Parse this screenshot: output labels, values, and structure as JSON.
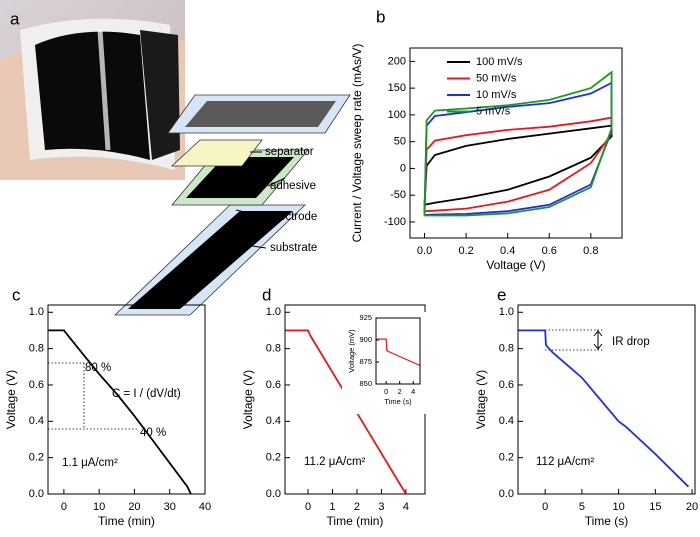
{
  "figure_a": {
    "panel": "a",
    "layers": [
      "separator",
      "adhesive",
      "electrode",
      "substrate"
    ]
  },
  "chart_data": [
    {
      "type": "line",
      "panel": "b",
      "xlabel": "Voltage (V)",
      "ylabel": "Current / Voltage sweep rate (mAs/V)",
      "xlim": [
        -0.07,
        0.95
      ],
      "ylim": [
        -130,
        225
      ],
      "xticks": [
        {
          "value": 0,
          "label": "0.0"
        },
        0.2,
        0.4,
        0.6,
        0.8
      ],
      "yticks": [
        -100,
        -50,
        0,
        50,
        100,
        150,
        200
      ],
      "legend": "top-left",
      "series": [
        {
          "name": "100 mV/s",
          "color": "#000000",
          "x": [
            0,
            0.01,
            0.05,
            0.2,
            0.4,
            0.6,
            0.8,
            0.9,
            0.9,
            0.8,
            0.6,
            0.4,
            0.2,
            0.05,
            0
          ],
          "values": [
            -68,
            5,
            25,
            42,
            55,
            65,
            75,
            80,
            60,
            20,
            -15,
            -40,
            -55,
            -64,
            -68
          ]
        },
        {
          "name": "50 mV/s",
          "color": "#e8191c",
          "x": [
            0,
            0.01,
            0.05,
            0.2,
            0.4,
            0.6,
            0.8,
            0.9,
            0.9,
            0.8,
            0.6,
            0.4,
            0.2,
            0.05,
            0
          ],
          "values": [
            -80,
            35,
            52,
            62,
            72,
            78,
            88,
            95,
            65,
            10,
            -40,
            -62,
            -75,
            -79,
            -80
          ]
        },
        {
          "name": "10 mV/s",
          "color": "#1f2fe0",
          "x": [
            0,
            0.01,
            0.05,
            0.2,
            0.4,
            0.6,
            0.8,
            0.9,
            0.9,
            0.8,
            0.6,
            0.4,
            0.2,
            0.05,
            0
          ],
          "values": [
            -87,
            80,
            98,
            105,
            115,
            122,
            140,
            160,
            70,
            -30,
            -68,
            -80,
            -85,
            -86,
            -87
          ]
        },
        {
          "name": "5 mV/s",
          "color": "#1a9a1a",
          "x": [
            0,
            0.01,
            0.05,
            0.2,
            0.4,
            0.6,
            0.8,
            0.9,
            0.9,
            0.8,
            0.6,
            0.4,
            0.2,
            0.05,
            0
          ],
          "values": [
            -88,
            90,
            108,
            112,
            118,
            128,
            150,
            180,
            75,
            -35,
            -72,
            -84,
            -88,
            -88,
            -88
          ]
        }
      ]
    },
    {
      "type": "line",
      "panel": "c",
      "xlabel": "Time (min)",
      "ylabel": "Voltage (V)",
      "xlim": [
        -4.5,
        40
      ],
      "ylim": [
        0,
        1.04
      ],
      "xticks": [
        0,
        10,
        20,
        30,
        40
      ],
      "yticks": [
        {
          "value": 0,
          "label": "0.0"
        },
        0.2,
        0.4,
        0.6,
        0.8,
        {
          "value": 1,
          "label": "1.0"
        }
      ],
      "annotations": [
        "80 %",
        "40 %",
        "C = I / (dV/dt)",
        "1.1 μA/cm²"
      ],
      "series": [
        {
          "color": "#000000",
          "x": [
            -4.5,
            0,
            5,
            10,
            15,
            20,
            25,
            30,
            35,
            36
          ],
          "values": [
            0.9,
            0.9,
            0.78,
            0.66,
            0.55,
            0.43,
            0.3,
            0.17,
            0.04,
            0
          ]
        }
      ]
    },
    {
      "type": "line",
      "panel": "d",
      "xlabel": "Time (min)",
      "ylabel": "Voltage (V)",
      "xlim": [
        -0.94,
        4.78
      ],
      "ylim": [
        0,
        1.04
      ],
      "xticks": [
        0,
        1,
        2,
        3,
        4
      ],
      "yticks": [
        {
          "value": 0,
          "label": "0.0"
        },
        0.2,
        0.4,
        0.6,
        0.8,
        {
          "value": 1,
          "label": "1.0"
        }
      ],
      "annotations": [
        "11.2 μA/cm²"
      ],
      "series": [
        {
          "color": "#e8191c",
          "x": [
            -0.94,
            0,
            0.1,
            4
          ],
          "values": [
            0.9,
            0.9,
            0.87,
            0
          ]
        }
      ]
    },
    {
      "type": "line",
      "xlabel": "Time (s)",
      "ylabel": "Voltage (mV)",
      "xlim": [
        -1.5,
        5
      ],
      "ylim": [
        850,
        925
      ],
      "xticks": [
        0,
        2,
        4
      ],
      "yticks": [
        850,
        875,
        900,
        925
      ],
      "series": [
        {
          "color": "#e8191c",
          "x": [
            -1.5,
            0,
            0.1,
            0.3,
            5
          ],
          "values": [
            901,
            901,
            888,
            887,
            871
          ]
        }
      ]
    },
    {
      "type": "line",
      "panel": "e",
      "xlabel": "Time (s)",
      "ylabel": "Voltage (V)",
      "xlim": [
        -3.7,
        20.4
      ],
      "ylim": [
        0,
        1.04
      ],
      "xticks": [
        0,
        5,
        10,
        15,
        20
      ],
      "yticks": [
        {
          "value": 0,
          "label": "0.0"
        },
        0.2,
        0.4,
        0.6,
        0.8,
        {
          "value": 1,
          "label": "1.0"
        }
      ],
      "annotations": [
        "IR drop",
        "112 μA/cm²"
      ],
      "series": [
        {
          "color": "#1f2fe0",
          "x": [
            -3.7,
            0,
            0.1,
            1,
            5,
            10,
            11,
            15,
            19.5
          ],
          "values": [
            0.9,
            0.9,
            0.82,
            0.78,
            0.64,
            0.4,
            0.37,
            0.22,
            0.04
          ]
        }
      ]
    }
  ]
}
